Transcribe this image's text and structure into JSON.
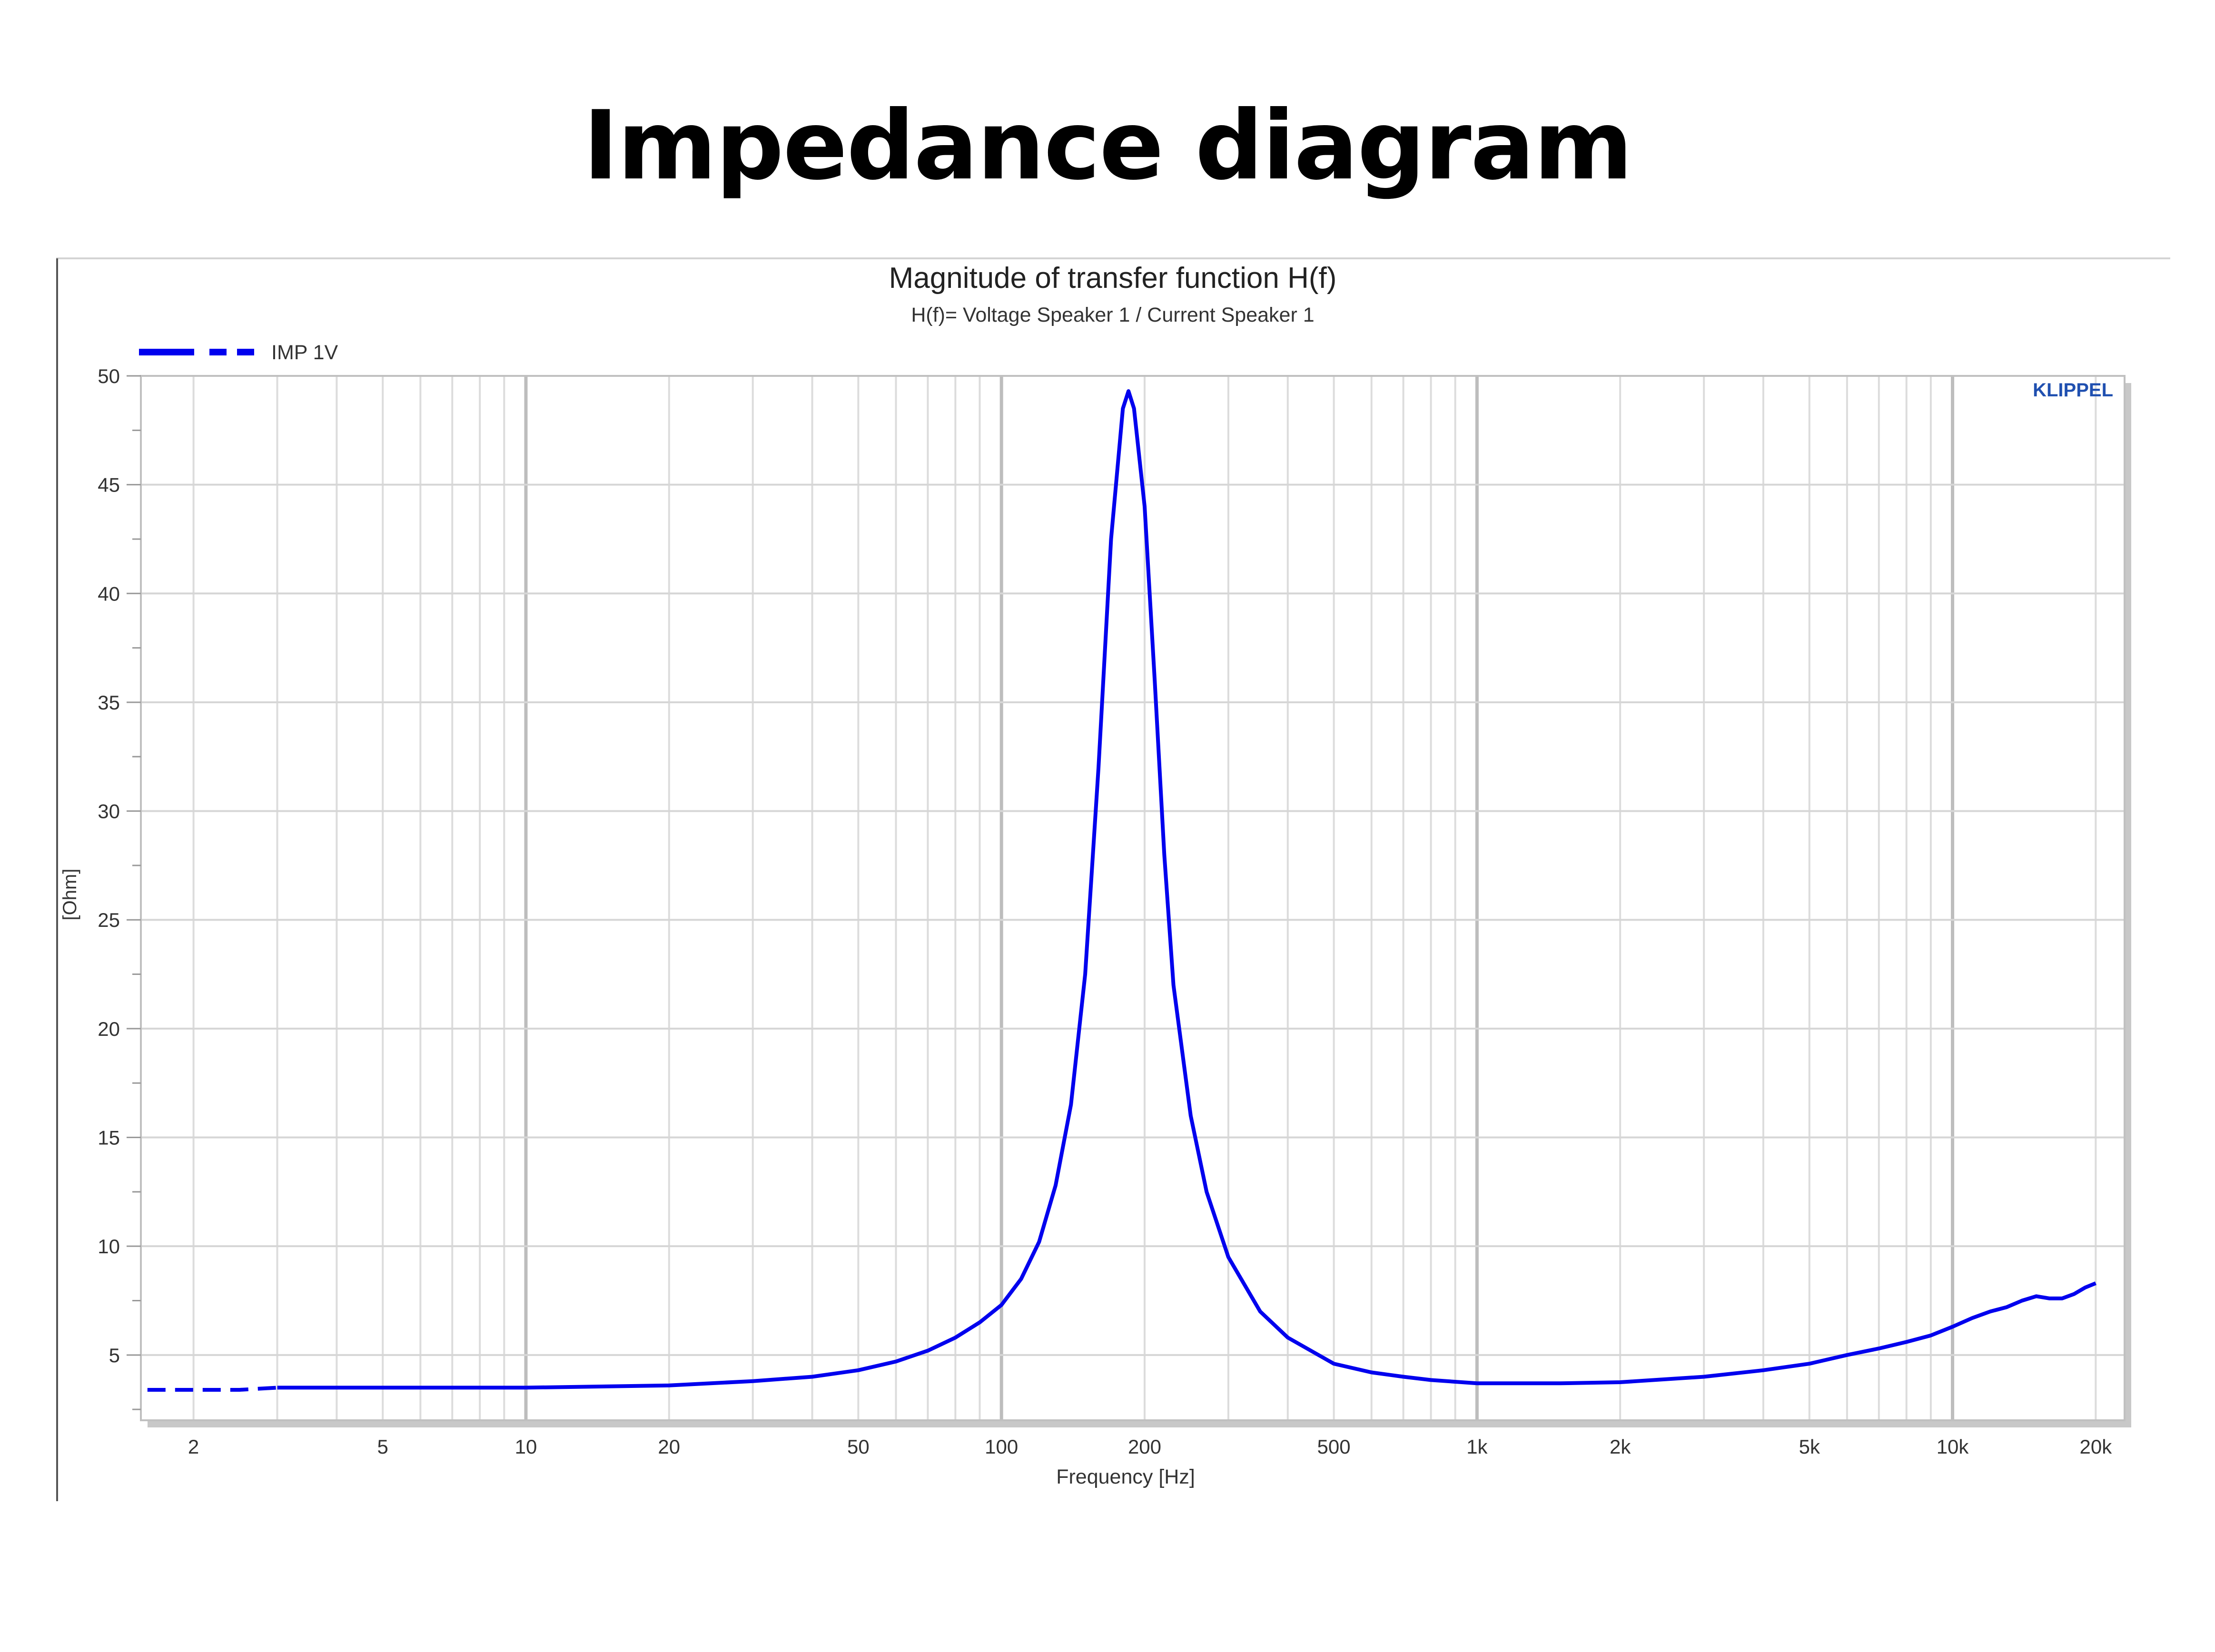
{
  "page": {
    "title": "Impedance diagram"
  },
  "colors": {
    "curve": "#0000ee",
    "logo": "#2050b0",
    "grid": "#c8c8c8",
    "text": "#222222"
  },
  "chart_data": {
    "type": "line",
    "title": "Magnitude of transfer function H(f)",
    "subtitle": "H(f)= Voltage Speaker 1 / Current Speaker 1",
    "xlabel": "Frequency [Hz]",
    "ylabel": "[Ohm]",
    "xscale": "log",
    "xlim": [
      1.55,
      23000
    ],
    "ylim": [
      2,
      50
    ],
    "grid": true,
    "legend_position": "top-left",
    "logo": "KLIPPEL",
    "x_tick_labels": [
      "2",
      "5",
      "10",
      "20",
      "50",
      "100",
      "200",
      "500",
      "1k",
      "2k",
      "5k",
      "10k",
      "20k"
    ],
    "x_tick_values": [
      2,
      5,
      10,
      20,
      50,
      100,
      200,
      500,
      1000,
      2000,
      5000,
      10000,
      20000
    ],
    "y_tick_labels": [
      "5",
      "10",
      "15",
      "20",
      "25",
      "30",
      "35",
      "40",
      "45",
      "50"
    ],
    "y_tick_values": [
      5,
      10,
      15,
      20,
      25,
      30,
      35,
      40,
      45,
      50
    ],
    "series": [
      {
        "name": "IMP 1V",
        "color": "#0000ee",
        "x": [
          1.6,
          2.5,
          3,
          5,
          10,
          20,
          30,
          40,
          50,
          60,
          70,
          80,
          90,
          100,
          110,
          120,
          130,
          140,
          150,
          160,
          170,
          180,
          185,
          190,
          200,
          210,
          220,
          230,
          250,
          270,
          300,
          350,
          400,
          500,
          600,
          700,
          800,
          1000,
          1200,
          1500,
          2000,
          3000,
          4000,
          5000,
          6000,
          7000,
          8000,
          9000,
          10000,
          11000,
          12000,
          13000,
          14000,
          15000,
          16000,
          17000,
          18000,
          19000,
          20000
        ],
        "y": [
          3.4,
          3.4,
          3.5,
          3.5,
          3.5,
          3.6,
          3.8,
          4.0,
          4.3,
          4.7,
          5.2,
          5.8,
          6.5,
          7.3,
          8.5,
          10.2,
          12.8,
          16.5,
          22.5,
          32.0,
          42.5,
          48.5,
          49.3,
          48.5,
          44.0,
          36.0,
          28.0,
          22.0,
          16.0,
          12.5,
          9.5,
          7.0,
          5.8,
          4.6,
          4.2,
          4.0,
          3.85,
          3.7,
          3.7,
          3.7,
          3.75,
          4.0,
          4.3,
          4.6,
          5.0,
          5.3,
          5.6,
          5.9,
          6.3,
          6.7,
          7.0,
          7.2,
          7.5,
          7.7,
          7.6,
          7.6,
          7.8,
          8.1,
          8.3
        ]
      }
    ]
  }
}
